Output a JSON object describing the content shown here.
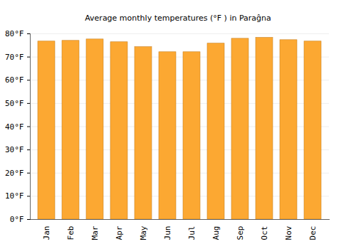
{
  "chart_data": {
    "type": "bar",
    "title": "Average monthly temperatures (°F ) in Paraĝna",
    "categories": [
      "Jan",
      "Feb",
      "Mar",
      "Apr",
      "May",
      "Jun",
      "Jul",
      "Aug",
      "Sep",
      "Oct",
      "Nov",
      "Dec"
    ],
    "values": [
      76.7,
      77.0,
      77.6,
      76.4,
      74.3,
      72.1,
      72.1,
      75.8,
      77.9,
      78.3,
      77.3,
      76.7
    ],
    "color": "#fca832",
    "ylim": [
      0,
      80
    ],
    "yticks": [
      {
        "value": 0,
        "label": "0°F"
      },
      {
        "value": 10,
        "label": "10°F"
      },
      {
        "value": 20,
        "label": "20°F"
      },
      {
        "value": 30,
        "label": "30°F"
      },
      {
        "value": 40,
        "label": "40°F"
      },
      {
        "value": 50,
        "label": "50°F"
      },
      {
        "value": 60,
        "label": "60°F"
      },
      {
        "value": 70,
        "label": "70°F"
      },
      {
        "value": 80,
        "label": "80°F"
      }
    ],
    "grid": true
  }
}
